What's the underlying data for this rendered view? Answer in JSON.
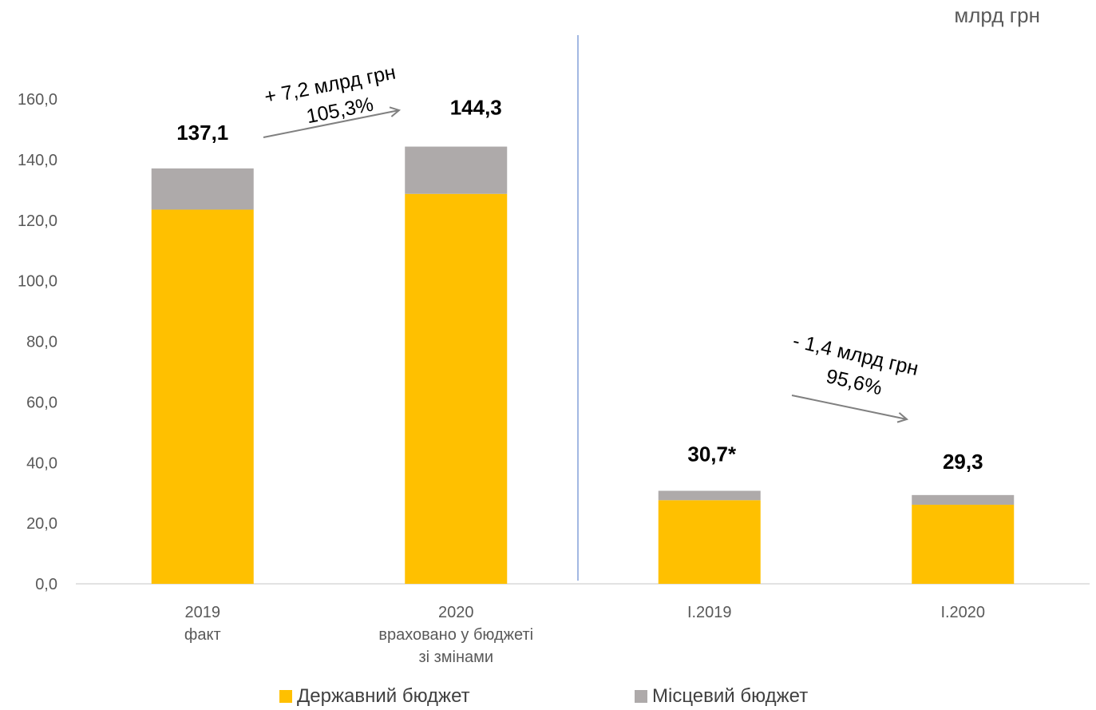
{
  "unit": "млрд грн",
  "colors": {
    "state": "#FFC000",
    "local": "#AEAAAA",
    "axis": "#D9D9D9",
    "text": "#595959",
    "arrow": "#808080",
    "divider": "#4472C4"
  },
  "chart_data": {
    "type": "bar",
    "stacked": true,
    "categories": [
      [
        "2019",
        "факт"
      ],
      [
        "2020",
        "враховано у бюджеті",
        "зі змінами"
      ],
      [
        "I.2019"
      ],
      [
        "I.2020"
      ]
    ],
    "series": [
      {
        "name": "Державний бюджет",
        "color": "#FFC000",
        "values": [
          123.5,
          128.7,
          27.6,
          26.1
        ]
      },
      {
        "name": "Місцевий бюджет",
        "color": "#AEAAAA",
        "values": [
          13.6,
          15.6,
          3.1,
          3.2
        ]
      }
    ],
    "totals": [
      "137,1",
      "144,3",
      "30,7*",
      "29,3"
    ],
    "yticks": [
      "0,0",
      "20,0",
      "40,0",
      "60,0",
      "80,0",
      "100,0",
      "120,0",
      "140,0",
      "160,0"
    ],
    "ylim": [
      0,
      160
    ],
    "annotations": [
      {
        "lines": [
          "+ 7,2 млрд грн",
          "105,3%"
        ]
      },
      {
        "lines": [
          "- 1,4 млрд грн",
          "95,6%"
        ]
      }
    ],
    "legend_position": "bottom"
  }
}
